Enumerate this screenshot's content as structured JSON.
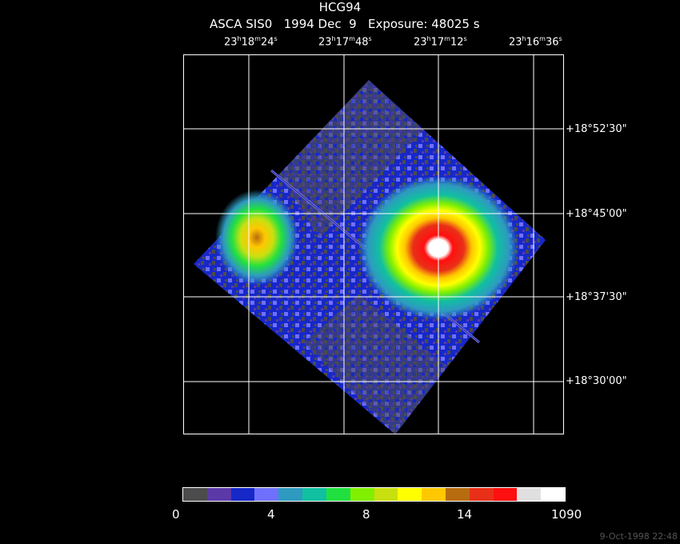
{
  "header": {
    "target": "HCG94",
    "instrument": "ASCA SIS0",
    "date": "1994 Dec  9",
    "exposure": "Exposure: 48025 s"
  },
  "ra_labels": [
    {
      "h": "23",
      "m": "18",
      "s": "24"
    },
    {
      "h": "23",
      "m": "17",
      "s": "48"
    },
    {
      "h": "23",
      "m": "17",
      "s": "12"
    },
    {
      "h": "23",
      "m": "16",
      "s": "36"
    }
  ],
  "dec_labels": [
    "+18°52'30\"",
    "+18°45'00\"",
    "+18°37'30\"",
    "+18°30'00\""
  ],
  "colorbar": {
    "colors": [
      "#4c4c4c",
      "#5b3aa8",
      "#1628c8",
      "#7070ff",
      "#2e9ac0",
      "#10c0a0",
      "#20e040",
      "#80f000",
      "#c8e010",
      "#ffff00",
      "#ffc800",
      "#b86c10",
      "#e83018",
      "#ff1010",
      "#e0e0e0",
      "#ffffff"
    ],
    "labels": [
      "0",
      "4",
      "8",
      "14",
      "1090"
    ]
  },
  "timestamp": "9-Oct-1998 22:48"
}
